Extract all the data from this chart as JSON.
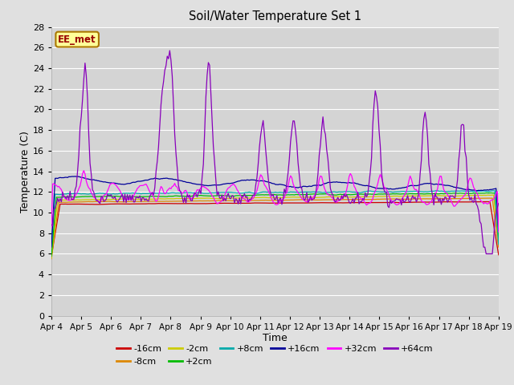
{
  "title": "Soil/Water Temperature Set 1",
  "xlabel": "Time",
  "ylabel": "Temperature (C)",
  "ylim": [
    0,
    28
  ],
  "yticks": [
    0,
    2,
    4,
    6,
    8,
    10,
    12,
    14,
    16,
    18,
    20,
    22,
    24,
    26,
    28
  ],
  "date_labels": [
    "Apr 4",
    "Apr 5",
    "Apr 6",
    "Apr 7",
    "Apr 8",
    "Apr 9",
    "Apr 10",
    "Apr 11",
    "Apr 12",
    "Apr 13",
    "Apr 14",
    "Apr 15",
    "Apr 16",
    "Apr 17",
    "Apr 18",
    "Apr 19"
  ],
  "legend_entries": [
    "-16cm",
    "-8cm",
    "-2cm",
    "+2cm",
    "+8cm",
    "+16cm",
    "+32cm",
    "+64cm"
  ],
  "legend_colors": [
    "#cc0000",
    "#dd8800",
    "#cccc00",
    "#00bb00",
    "#00aaaa",
    "#000099",
    "#ff00ff",
    "#8800bb"
  ],
  "annotation_text": "EE_met",
  "annotation_bg": "#ffff99",
  "annotation_border": "#aa7700",
  "annotation_text_color": "#990000",
  "bg_color": "#e0e0e0",
  "plot_bg_color": "#d4d4d4"
}
